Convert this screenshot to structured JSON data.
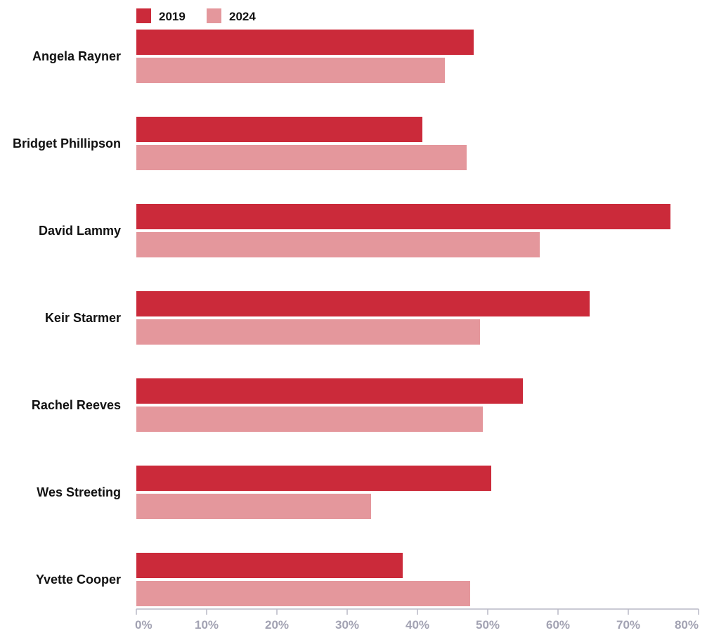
{
  "chart_data": {
    "type": "bar",
    "orientation": "horizontal",
    "categories": [
      "Angela Rayner",
      "Bridget Phillipson",
      "David Lammy",
      "Keir Starmer",
      "Rachel Reeves",
      "Wes Streeting",
      "Yvette Cooper"
    ],
    "series": [
      {
        "name": "2019",
        "color": "#cb2a3a",
        "values": [
          48,
          40.7,
          76,
          64.5,
          55,
          50.5,
          37.9
        ]
      },
      {
        "name": "2024",
        "color": "#e4979c",
        "values": [
          43.9,
          47,
          57.4,
          48.9,
          49.3,
          33.4,
          47.5
        ]
      }
    ],
    "xlim": [
      0,
      80
    ],
    "ticks": [
      0,
      10,
      20,
      30,
      40,
      50,
      60,
      70,
      80
    ],
    "tick_labels": [
      "0%",
      "10%",
      "20%",
      "30%",
      "40%",
      "50%",
      "60%",
      "70%",
      "80%"
    ],
    "legend_position": "top-left",
    "grid": false
  }
}
